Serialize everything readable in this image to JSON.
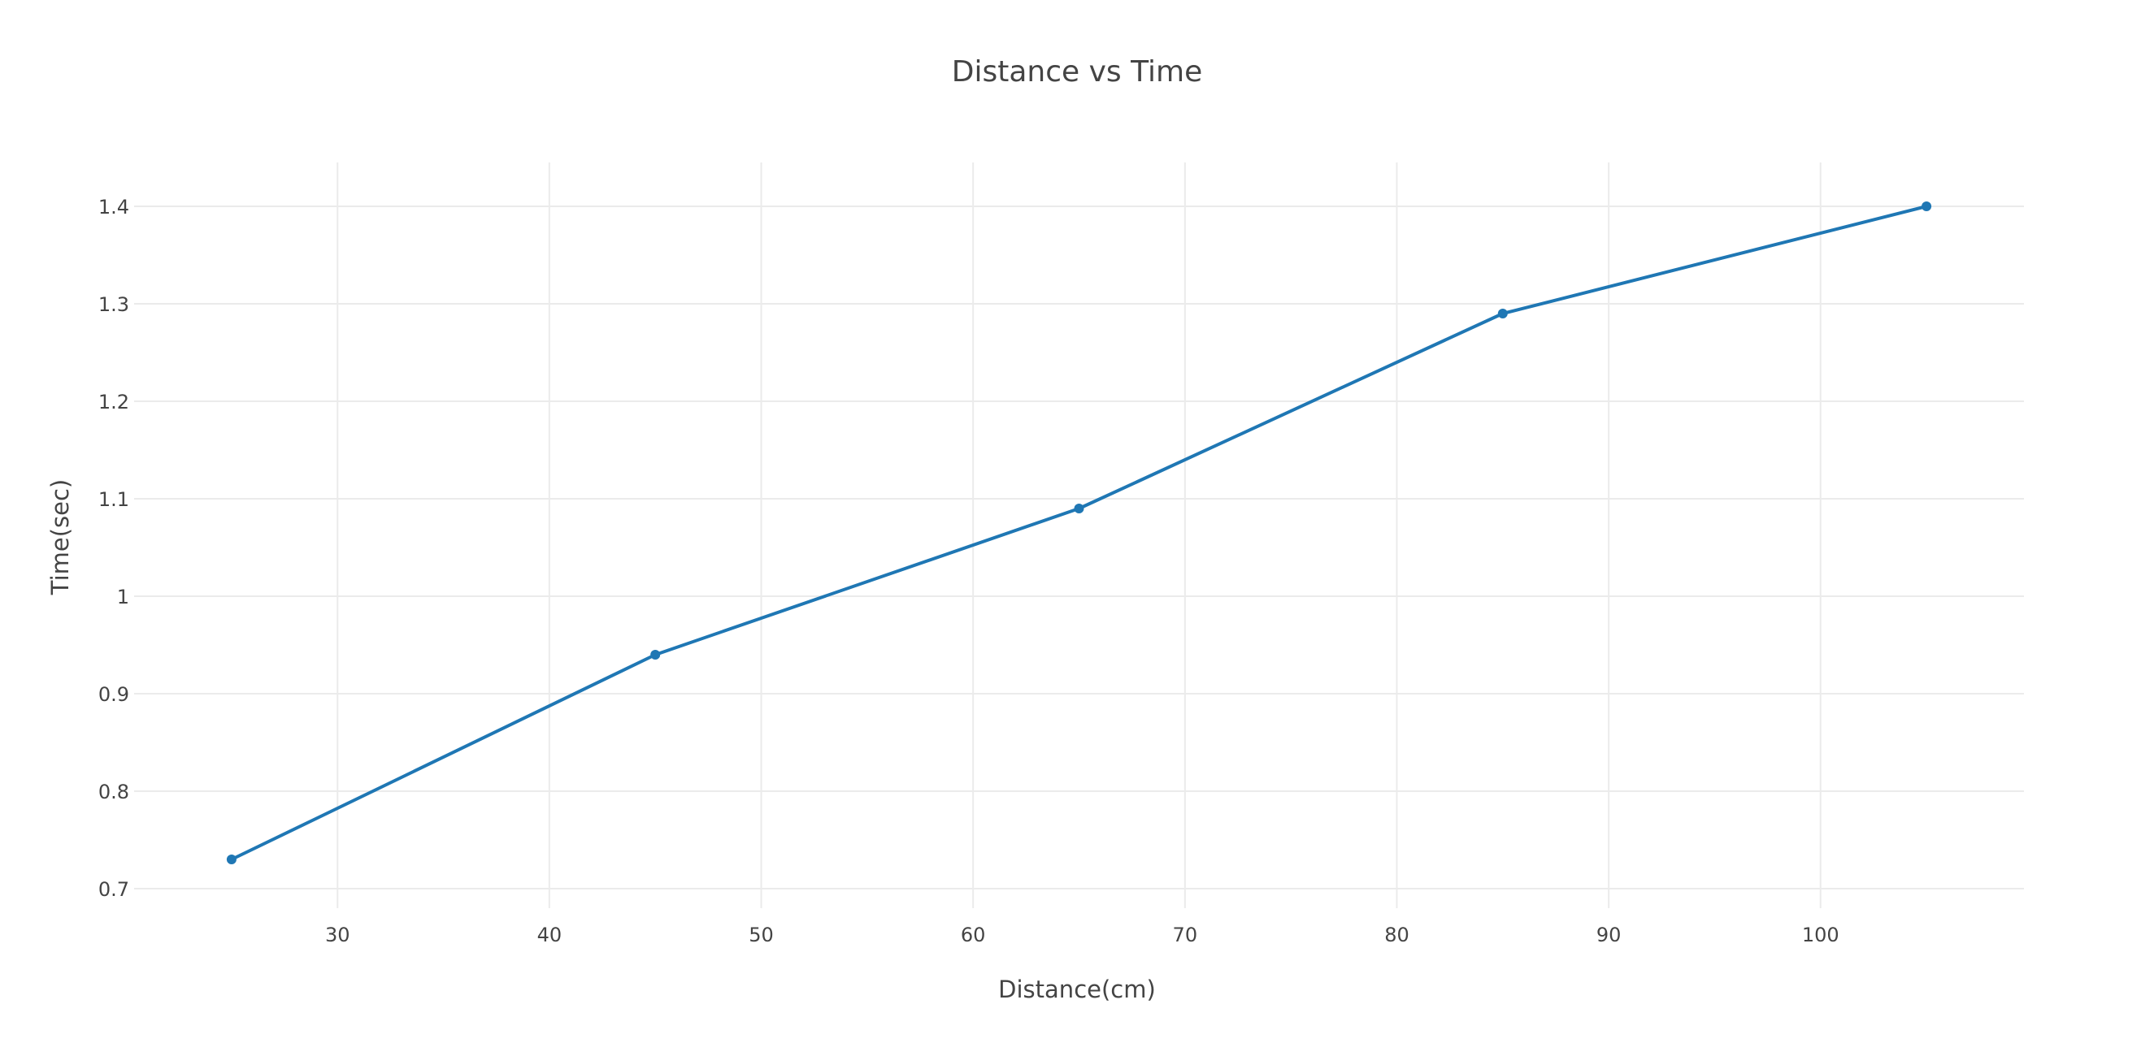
{
  "chart_data": {
    "type": "line",
    "title": "Distance vs Time",
    "xlabel": "Distance(cm)",
    "ylabel": "Time(sec)",
    "xlim": [
      20.4,
      109.6
    ],
    "ylim": [
      0.68,
      1.445
    ],
    "x_ticks": [
      30,
      40,
      50,
      60,
      70,
      80,
      90,
      100
    ],
    "y_ticks": [
      0.7,
      0.8,
      0.9,
      1,
      1.1,
      1.2,
      1.3,
      1.4
    ],
    "grid": true,
    "series": [
      {
        "x": [
          25,
          45,
          65,
          85,
          105
        ],
        "y": [
          0.73,
          0.94,
          1.09,
          1.29,
          1.4
        ],
        "color": "#1f77b4"
      }
    ]
  }
}
